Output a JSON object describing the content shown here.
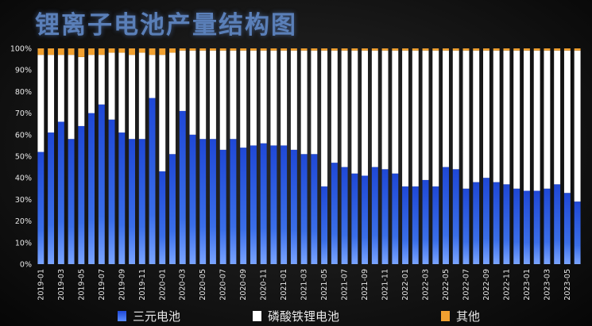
{
  "title": "锂离子电池产量结构图",
  "colors": {
    "ncm": "#2a52d8",
    "lfp": "#ffffff",
    "other": "#f0a030"
  },
  "legend": [
    {
      "name": "三元电池",
      "color": "#2a52d8"
    },
    {
      "name": "磷酸铁锂电池",
      "color": "#ffffff"
    },
    {
      "name": "其他",
      "color": "#f0a030"
    }
  ],
  "chart_data": {
    "type": "bar",
    "stacked": true,
    "ylim": [
      0,
      100
    ],
    "y_ticks": [
      "0%",
      "10%",
      "20%",
      "30%",
      "40%",
      "50%",
      "60%",
      "70%",
      "80%",
      "90%",
      "100%"
    ],
    "categories": [
      "2019-01",
      "2019-02",
      "2019-03",
      "2019-04",
      "2019-05",
      "2019-06",
      "2019-07",
      "2019-08",
      "2019-09",
      "2019-10",
      "2019-11",
      "2019-12",
      "2020-01",
      "2020-02",
      "2020-03",
      "2020-04",
      "2020-05",
      "2020-06",
      "2020-07",
      "2020-08",
      "2020-09",
      "2020-10",
      "2020-11",
      "2020-12",
      "2021-01",
      "2021-02",
      "2021-03",
      "2021-04",
      "2021-05",
      "2021-06",
      "2021-07",
      "2021-08",
      "2021-09",
      "2021-10",
      "2021-11",
      "2021-12",
      "2022-01",
      "2022-02",
      "2022-03",
      "2022-04",
      "2022-05",
      "2022-06",
      "2022-07",
      "2022-08",
      "2022-09",
      "2022-10",
      "2022-11",
      "2022-12",
      "2023-01",
      "2023-02",
      "2023-03",
      "2023-04",
      "2023-05",
      "2023-06"
    ],
    "tick_labels_shown": [
      "2019-01",
      "2019-03",
      "2019-05",
      "2019-07",
      "2019-09",
      "2019-11",
      "2020-01",
      "2020-03",
      "2020-05",
      "2020-07",
      "2020-09",
      "2020-11",
      "2021-01",
      "2021-03",
      "2021-05",
      "2021-07",
      "2021-09",
      "2021-11",
      "2022-01",
      "2022-03",
      "2022-05",
      "2022-07",
      "2022-09",
      "2022-11",
      "2023-01",
      "2023-03",
      "2023-05"
    ],
    "series": [
      {
        "name": "三元电池",
        "values": [
          52,
          61,
          66,
          58,
          64,
          70,
          74,
          67,
          61,
          58,
          58,
          77,
          43,
          51,
          71,
          60,
          58,
          58,
          53,
          58,
          54,
          55,
          56,
          55,
          55,
          53,
          51,
          51,
          36,
          47,
          45,
          42,
          41,
          45,
          44,
          42,
          36,
          36,
          39,
          36,
          45,
          44,
          35,
          38,
          40,
          38,
          37,
          35,
          34,
          34,
          35,
          37,
          33,
          29
        ]
      },
      {
        "name": "磷酸铁锂电池",
        "values": [
          45,
          36,
          31,
          39,
          32,
          27,
          23,
          31,
          37,
          39,
          40,
          20,
          54,
          47,
          28,
          39,
          41,
          41,
          46,
          41,
          45,
          44,
          43,
          44,
          44,
          46,
          48,
          48,
          63,
          52,
          54,
          57,
          58,
          54,
          55,
          57,
          63,
          63,
          60,
          63,
          54,
          55,
          64,
          61,
          59,
          61,
          62,
          64,
          65,
          65,
          64,
          62,
          66,
          70
        ]
      },
      {
        "name": "其他",
        "values": [
          3,
          3,
          3,
          3,
          4,
          3,
          3,
          2,
          2,
          3,
          2,
          3,
          3,
          2,
          1,
          1,
          1,
          1,
          1,
          1,
          1,
          1,
          1,
          1,
          1,
          1,
          1,
          1,
          1,
          1,
          1,
          1,
          1,
          1,
          1,
          1,
          1,
          1,
          1,
          1,
          1,
          1,
          1,
          1,
          1,
          1,
          1,
          1,
          1,
          1,
          1,
          1,
          1,
          1
        ]
      }
    ]
  }
}
